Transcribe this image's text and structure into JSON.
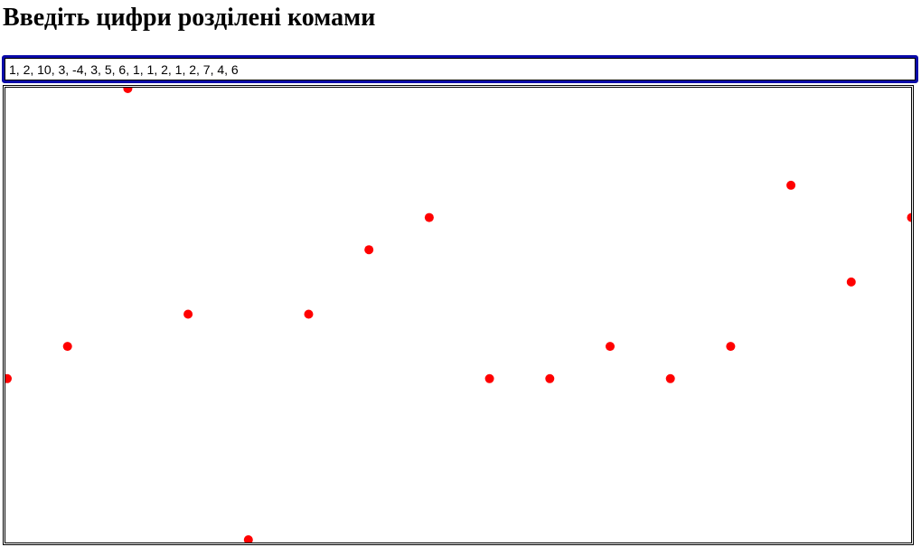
{
  "page": {
    "title": "Введіть цифри розділені комами"
  },
  "input": {
    "value": "1, 2, 10, 3, -4, 3, 5, 6, 1, 1, 2, 1, 2, 7, 4, 6"
  },
  "chart_data": {
    "type": "scatter",
    "x": [
      0,
      1,
      2,
      3,
      4,
      5,
      6,
      7,
      8,
      9,
      10,
      11,
      12,
      13,
      14,
      15
    ],
    "values": [
      1,
      2,
      10,
      3,
      -4,
      3,
      5,
      6,
      1,
      1,
      2,
      1,
      2,
      7,
      4,
      6
    ],
    "point_color": "#ff0000",
    "title": "",
    "xlabel": "",
    "ylabel": "",
    "ylim": [
      -4,
      10
    ],
    "grid": false,
    "legend": false
  }
}
